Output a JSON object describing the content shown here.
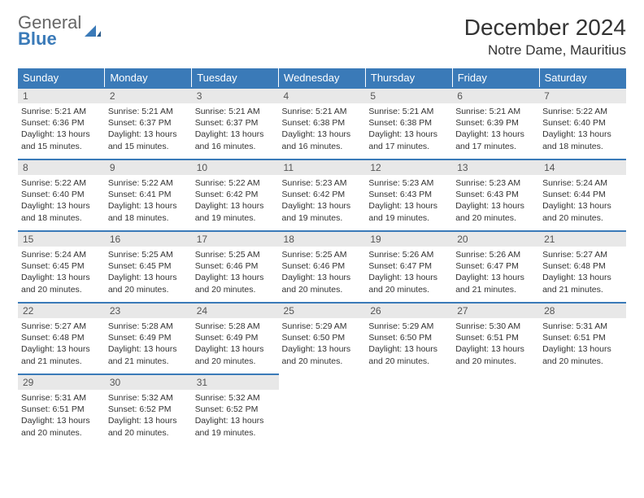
{
  "logo": {
    "line1": "General",
    "line2": "Blue"
  },
  "title": "December 2024",
  "location": "Notre Dame, Mauritius",
  "header_color": "#3a7ab8",
  "day_num_bg": "#e8e8e8",
  "weekdays": [
    "Sunday",
    "Monday",
    "Tuesday",
    "Wednesday",
    "Thursday",
    "Friday",
    "Saturday"
  ],
  "font_family": "Arial",
  "title_fontsize": 28,
  "location_fontsize": 17,
  "weekday_fontsize": 13,
  "daynum_fontsize": 12,
  "body_fontsize": 10.5,
  "days": [
    {
      "n": 1,
      "sr": "5:21 AM",
      "ss": "6:36 PM",
      "dl": "13 hours and 15 minutes."
    },
    {
      "n": 2,
      "sr": "5:21 AM",
      "ss": "6:37 PM",
      "dl": "13 hours and 15 minutes."
    },
    {
      "n": 3,
      "sr": "5:21 AM",
      "ss": "6:37 PM",
      "dl": "13 hours and 16 minutes."
    },
    {
      "n": 4,
      "sr": "5:21 AM",
      "ss": "6:38 PM",
      "dl": "13 hours and 16 minutes."
    },
    {
      "n": 5,
      "sr": "5:21 AM",
      "ss": "6:38 PM",
      "dl": "13 hours and 17 minutes."
    },
    {
      "n": 6,
      "sr": "5:21 AM",
      "ss": "6:39 PM",
      "dl": "13 hours and 17 minutes."
    },
    {
      "n": 7,
      "sr": "5:22 AM",
      "ss": "6:40 PM",
      "dl": "13 hours and 18 minutes."
    },
    {
      "n": 8,
      "sr": "5:22 AM",
      "ss": "6:40 PM",
      "dl": "13 hours and 18 minutes."
    },
    {
      "n": 9,
      "sr": "5:22 AM",
      "ss": "6:41 PM",
      "dl": "13 hours and 18 minutes."
    },
    {
      "n": 10,
      "sr": "5:22 AM",
      "ss": "6:42 PM",
      "dl": "13 hours and 19 minutes."
    },
    {
      "n": 11,
      "sr": "5:23 AM",
      "ss": "6:42 PM",
      "dl": "13 hours and 19 minutes."
    },
    {
      "n": 12,
      "sr": "5:23 AM",
      "ss": "6:43 PM",
      "dl": "13 hours and 19 minutes."
    },
    {
      "n": 13,
      "sr": "5:23 AM",
      "ss": "6:43 PM",
      "dl": "13 hours and 20 minutes."
    },
    {
      "n": 14,
      "sr": "5:24 AM",
      "ss": "6:44 PM",
      "dl": "13 hours and 20 minutes."
    },
    {
      "n": 15,
      "sr": "5:24 AM",
      "ss": "6:45 PM",
      "dl": "13 hours and 20 minutes."
    },
    {
      "n": 16,
      "sr": "5:25 AM",
      "ss": "6:45 PM",
      "dl": "13 hours and 20 minutes."
    },
    {
      "n": 17,
      "sr": "5:25 AM",
      "ss": "6:46 PM",
      "dl": "13 hours and 20 minutes."
    },
    {
      "n": 18,
      "sr": "5:25 AM",
      "ss": "6:46 PM",
      "dl": "13 hours and 20 minutes."
    },
    {
      "n": 19,
      "sr": "5:26 AM",
      "ss": "6:47 PM",
      "dl": "13 hours and 20 minutes."
    },
    {
      "n": 20,
      "sr": "5:26 AM",
      "ss": "6:47 PM",
      "dl": "13 hours and 21 minutes."
    },
    {
      "n": 21,
      "sr": "5:27 AM",
      "ss": "6:48 PM",
      "dl": "13 hours and 21 minutes."
    },
    {
      "n": 22,
      "sr": "5:27 AM",
      "ss": "6:48 PM",
      "dl": "13 hours and 21 minutes."
    },
    {
      "n": 23,
      "sr": "5:28 AM",
      "ss": "6:49 PM",
      "dl": "13 hours and 21 minutes."
    },
    {
      "n": 24,
      "sr": "5:28 AM",
      "ss": "6:49 PM",
      "dl": "13 hours and 20 minutes."
    },
    {
      "n": 25,
      "sr": "5:29 AM",
      "ss": "6:50 PM",
      "dl": "13 hours and 20 minutes."
    },
    {
      "n": 26,
      "sr": "5:29 AM",
      "ss": "6:50 PM",
      "dl": "13 hours and 20 minutes."
    },
    {
      "n": 27,
      "sr": "5:30 AM",
      "ss": "6:51 PM",
      "dl": "13 hours and 20 minutes."
    },
    {
      "n": 28,
      "sr": "5:31 AM",
      "ss": "6:51 PM",
      "dl": "13 hours and 20 minutes."
    },
    {
      "n": 29,
      "sr": "5:31 AM",
      "ss": "6:51 PM",
      "dl": "13 hours and 20 minutes."
    },
    {
      "n": 30,
      "sr": "5:32 AM",
      "ss": "6:52 PM",
      "dl": "13 hours and 20 minutes."
    },
    {
      "n": 31,
      "sr": "5:32 AM",
      "ss": "6:52 PM",
      "dl": "13 hours and 19 minutes."
    }
  ],
  "labels": {
    "sunrise": "Sunrise:",
    "sunset": "Sunset:",
    "daylight": "Daylight:"
  }
}
